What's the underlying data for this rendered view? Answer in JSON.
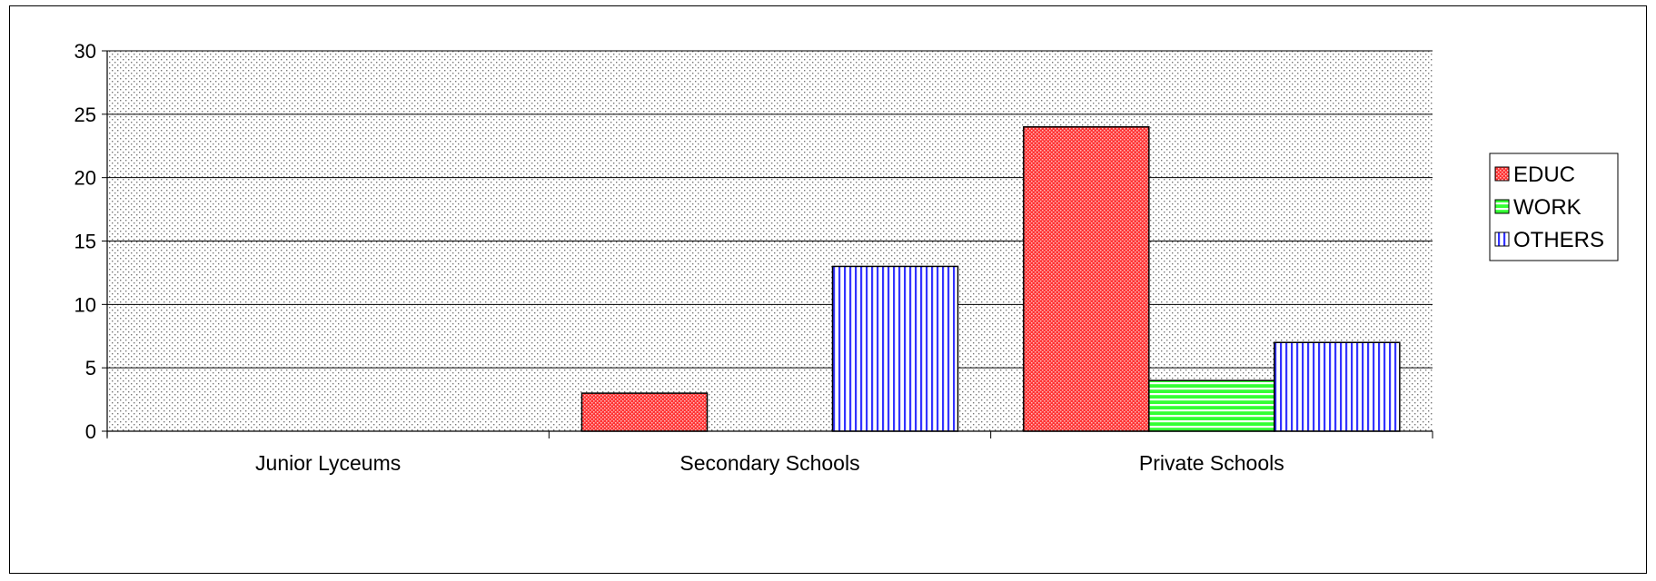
{
  "chart_data": {
    "type": "bar",
    "categories": [
      "Junior Lyceums",
      "Secondary Schools",
      "Private Schools"
    ],
    "series": [
      {
        "name": "EDUC",
        "values": [
          0,
          3,
          24
        ],
        "color": "#ff3333",
        "pattern": "dots"
      },
      {
        "name": "WORK",
        "values": [
          0,
          0,
          4
        ],
        "color": "#33ff33",
        "pattern": "horizontal-lines"
      },
      {
        "name": "OTHERS",
        "values": [
          0,
          13,
          7
        ],
        "color": "#3333ff",
        "pattern": "vertical-lines"
      }
    ],
    "ylim": [
      0,
      30
    ],
    "yticks": [
      "0",
      "5",
      "10",
      "15",
      "20",
      "25",
      "30"
    ],
    "grid": "horizontal",
    "plot_background": "dotted-gray",
    "legend_position": "right",
    "title": "",
    "xlabel": "",
    "ylabel": ""
  }
}
